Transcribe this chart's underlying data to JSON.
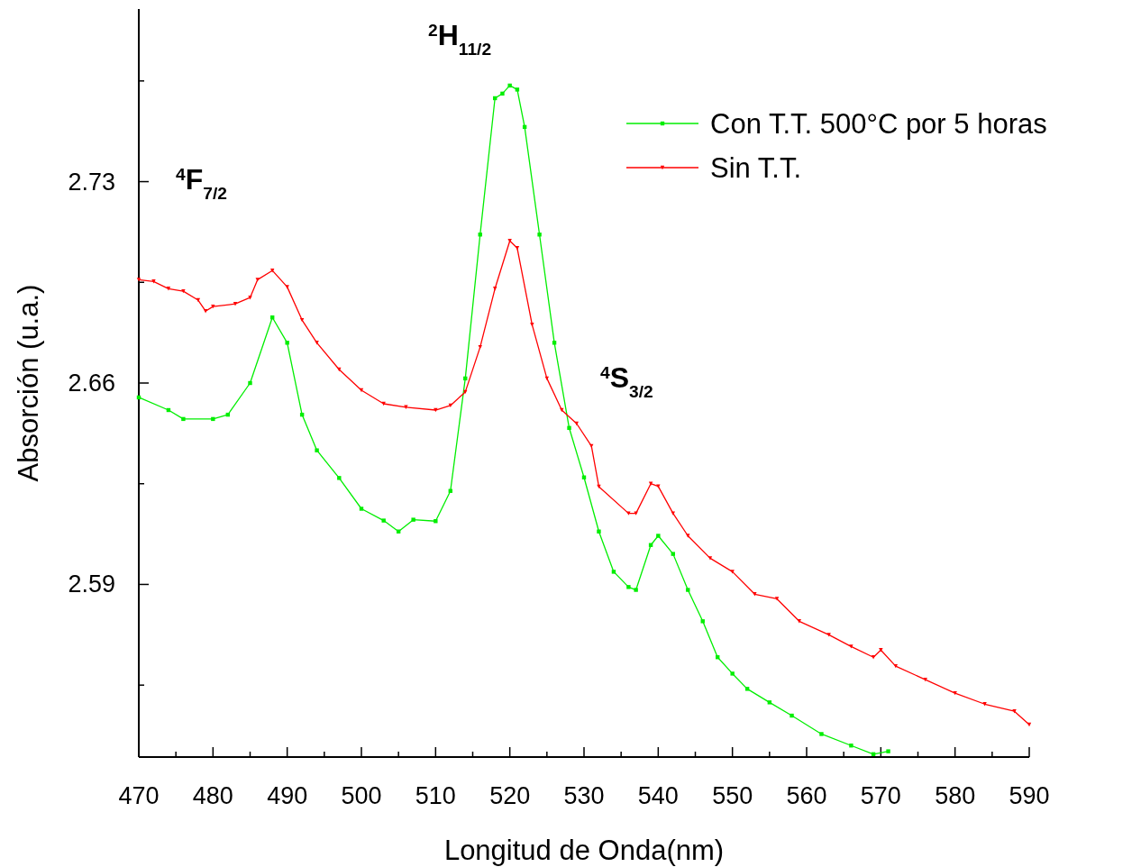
{
  "chart_data": {
    "type": "line",
    "xlabel": "Longitud de Onda(nm)",
    "ylabel": "Absorción (u.a.)",
    "xlim": [
      470,
      590
    ],
    "xticks": [
      470,
      {
        "value": 475,
        "label": null
      },
      480,
      {
        "value": 485,
        "label": null
      },
      490,
      {
        "value": 495,
        "label": null
      },
      500,
      {
        "value": 505,
        "label": null
      },
      510,
      {
        "value": 515,
        "label": null
      },
      520,
      {
        "value": 525,
        "label": null
      },
      530,
      {
        "value": 535,
        "label": null
      },
      540,
      {
        "value": 545,
        "label": null
      },
      550,
      {
        "value": 555,
        "label": null
      },
      560,
      {
        "value": 565,
        "label": null
      },
      570,
      {
        "value": 575,
        "label": null
      },
      580,
      {
        "value": 585,
        "label": null
      },
      590
    ],
    "ylim": [
      2.53,
      2.79
    ],
    "yticks": [
      {
        "value": 2.555,
        "label": null
      },
      2.59,
      {
        "value": 2.625,
        "label": null
      },
      2.66,
      {
        "value": 2.695,
        "label": null
      },
      2.73,
      {
        "value": 2.765,
        "label": null
      }
    ],
    "grid": false,
    "legend": "top right",
    "line_style": "solid",
    "annotations": [
      "$^{4}$F$_{7/2}$",
      "$^{2}$H$_{11/2}$",
      "$^{4}$S$_{3/2}$"
    ],
    "series": [
      {
        "name": "Con T.T. 500°C por 5 horas",
        "color": "#00ee00",
        "marker": "square",
        "x": [
          470,
          474,
          476,
          480,
          482,
          485,
          488,
          490,
          492,
          494,
          497,
          500,
          503,
          505,
          507,
          510,
          512,
          514,
          516,
          518,
          519,
          520,
          521,
          522,
          524,
          526,
          528,
          530,
          532,
          534,
          536,
          537,
          539,
          540,
          542,
          544,
          546,
          548,
          550,
          552,
          555,
          558,
          562,
          566,
          569,
          571
        ],
        "values": [
          2.655,
          2.6506,
          2.6475,
          2.6475,
          2.649,
          2.66,
          2.6828,
          2.674,
          2.649,
          2.6366,
          2.627,
          2.6163,
          2.6122,
          2.6084,
          2.6125,
          2.612,
          2.6225,
          2.6616,
          2.7116,
          2.759,
          2.7606,
          2.7634,
          2.762,
          2.749,
          2.7116,
          2.674,
          2.6444,
          2.6272,
          2.6084,
          2.5944,
          2.5891,
          2.5881,
          2.6037,
          2.6069,
          2.6006,
          2.5881,
          2.5772,
          2.5647,
          2.559,
          2.5537,
          2.549,
          2.5444,
          2.538,
          2.534,
          2.531,
          2.532
        ]
      },
      {
        "name": "Sin T.T.",
        "color": "#ff0000",
        "marker": "triangle",
        "x": [
          470,
          472,
          474,
          476,
          478,
          479,
          480,
          483,
          485,
          486,
          488,
          490,
          492,
          494,
          497,
          500,
          503,
          506,
          510,
          512,
          514,
          516,
          518,
          520,
          521,
          523,
          525,
          527,
          529,
          531,
          532,
          536,
          537,
          539,
          540,
          542,
          544,
          547,
          550,
          553,
          556,
          559,
          563,
          566,
          569,
          570,
          572,
          576,
          580,
          584,
          588,
          590
        ],
        "values": [
          2.6959,
          2.6953,
          2.6928,
          2.6919,
          2.6888,
          2.685,
          2.6866,
          2.6875,
          2.6897,
          2.6959,
          2.6991,
          2.6934,
          2.6819,
          2.674,
          2.6647,
          2.6575,
          2.6528,
          2.6516,
          2.6506,
          2.6522,
          2.6569,
          2.6725,
          2.6928,
          2.7094,
          2.7069,
          2.6803,
          2.6616,
          2.6506,
          2.6459,
          2.6381,
          2.624,
          2.6147,
          2.6147,
          2.625,
          2.6241,
          2.6147,
          2.6069,
          2.5991,
          2.5944,
          2.5866,
          2.585,
          2.5772,
          2.5725,
          2.5684,
          2.5647,
          2.5672,
          2.5616,
          2.5569,
          2.5522,
          2.5484,
          2.5459,
          2.5413
        ]
      }
    ]
  }
}
